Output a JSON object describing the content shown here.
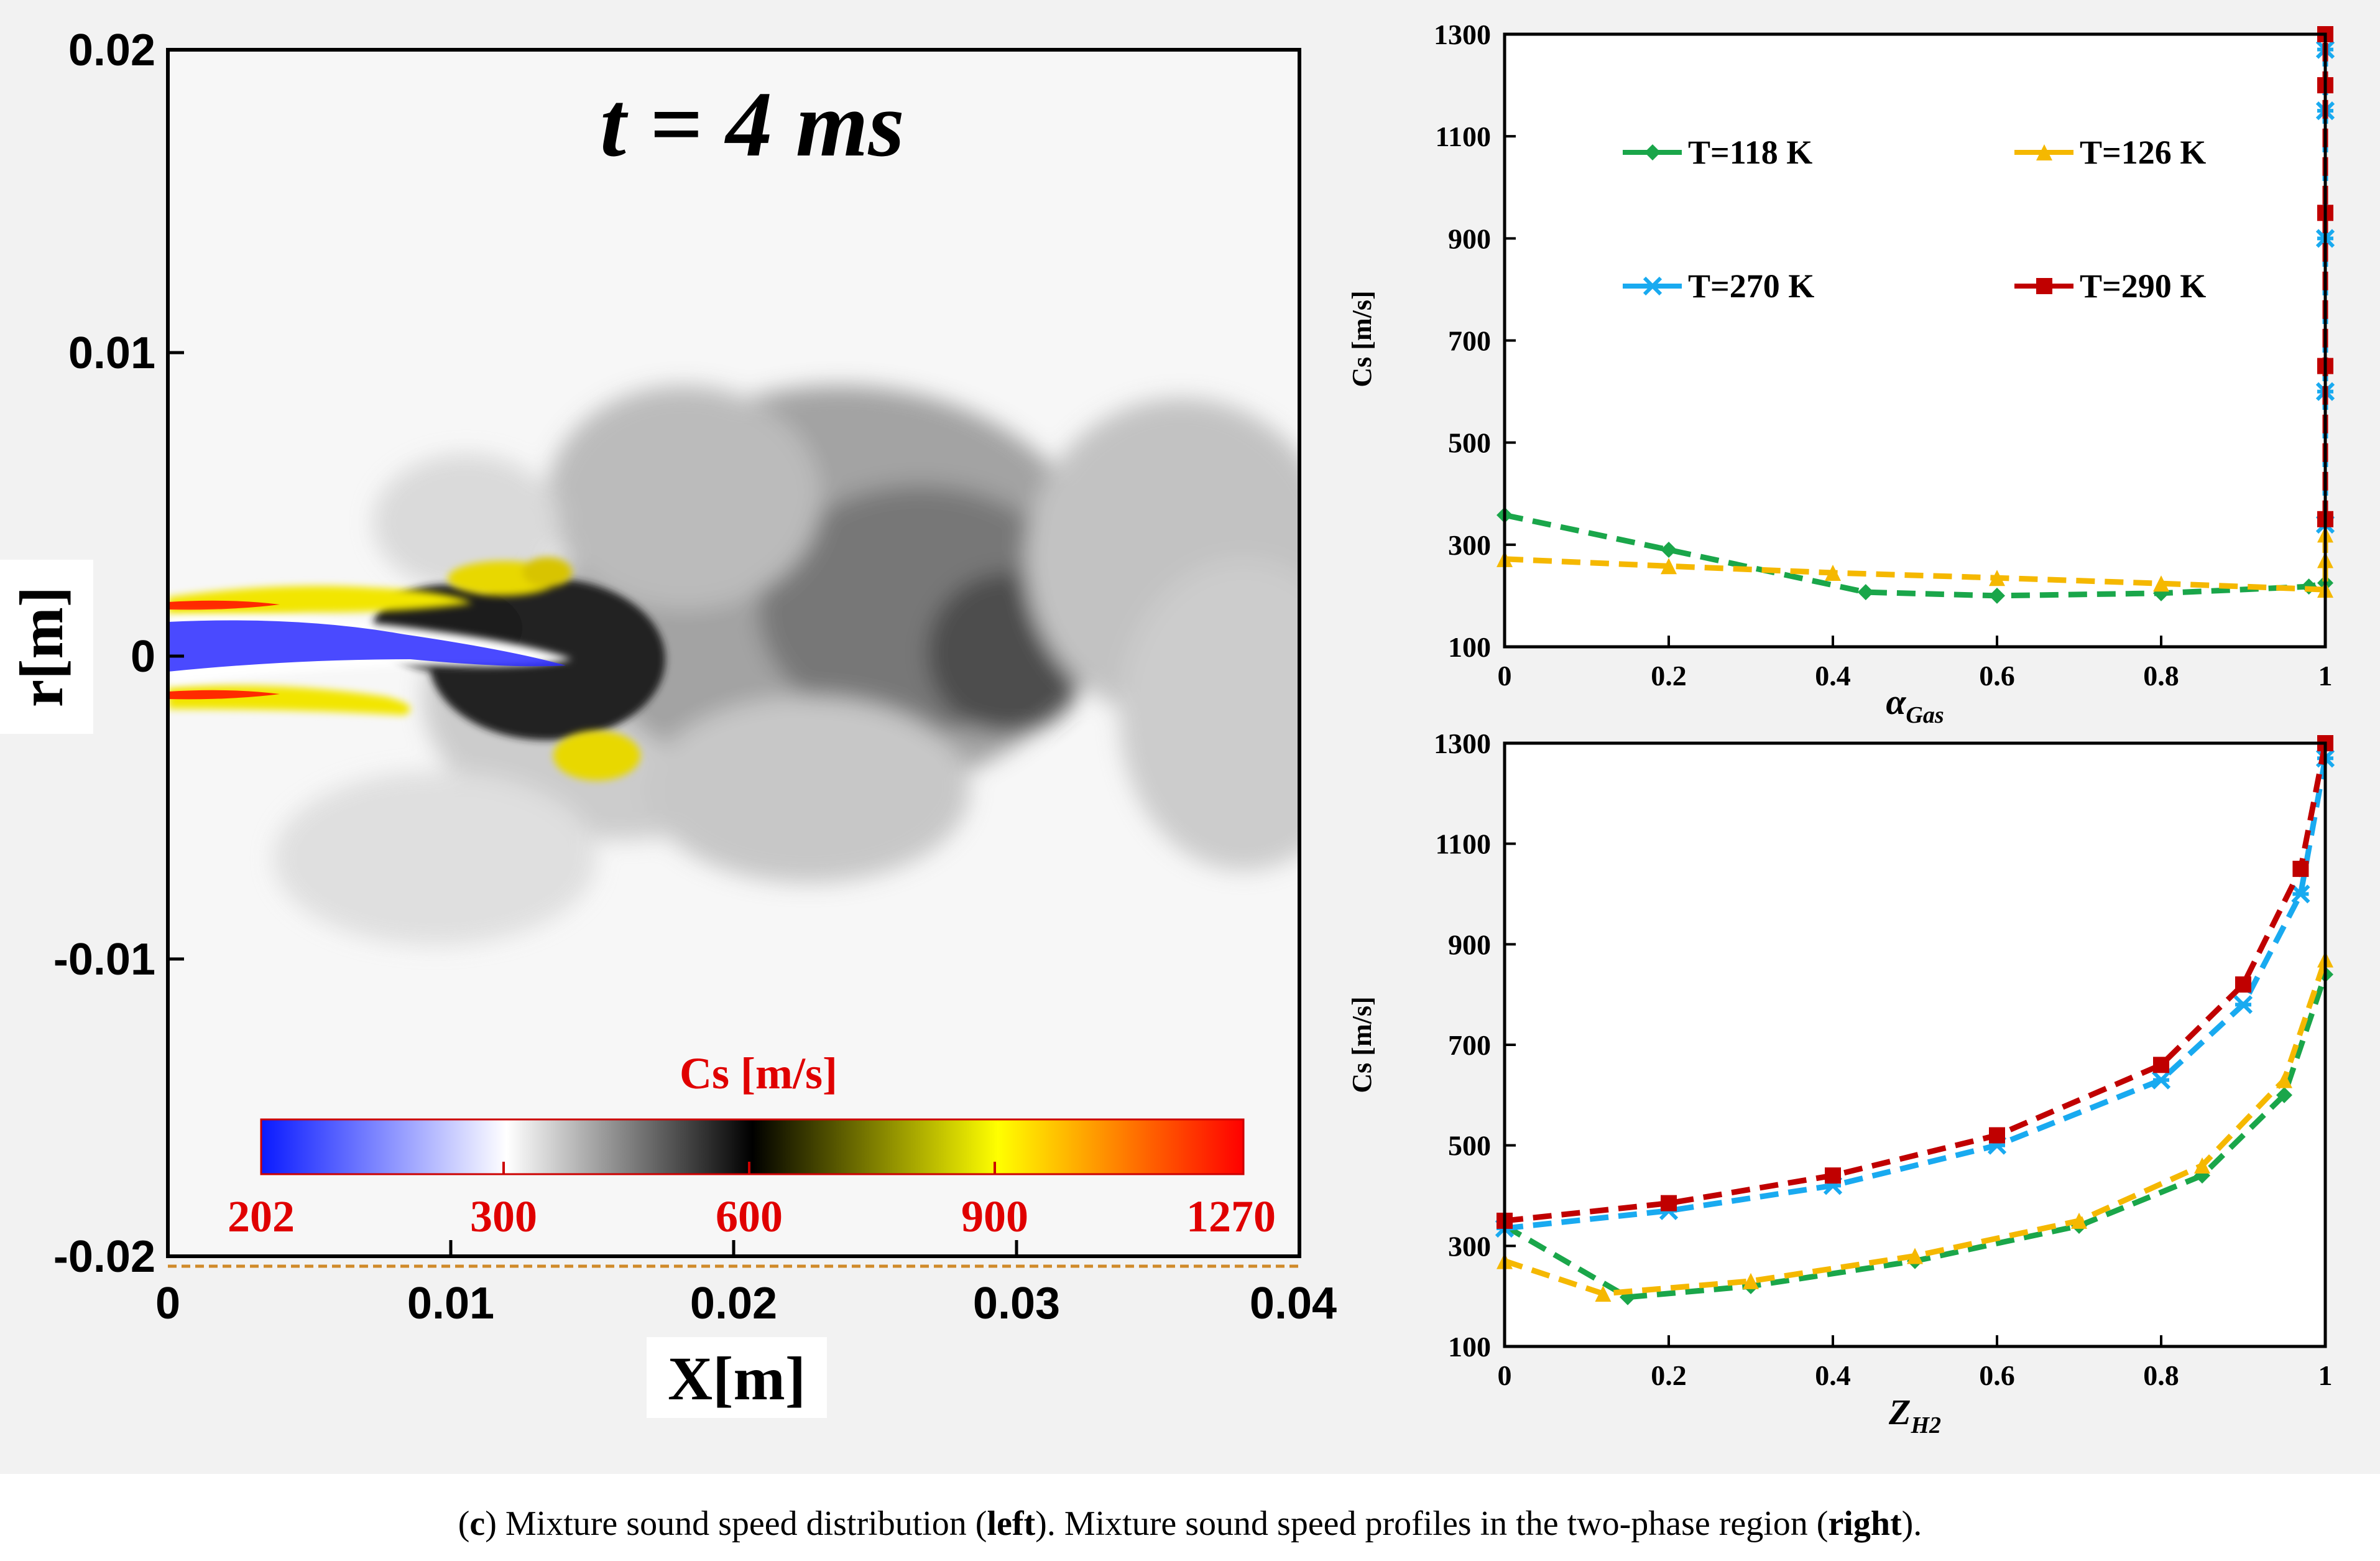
{
  "colors": {
    "panel_bg": "#f2f2f2",
    "red_text": "#e00000",
    "series_green": "#1aa64a",
    "series_yellow": "#f5b800",
    "series_blue": "#19aaf0",
    "series_red": "#c00000"
  },
  "caption": {
    "label": "c",
    "open": "(",
    "close": ")",
    "part1": " Mixture sound speed distribution (",
    "left": "left",
    "part2": "). Mixture sound speed profiles in the two-phase region (",
    "right": "right",
    "part3": ")."
  },
  "contour": {
    "time_label": "t = 4 ms",
    "xlabel": "X[m]",
    "ylabel": "r[m]",
    "x_ticks": [
      "0",
      "0.01",
      "0.02",
      "0.03",
      "0.04"
    ],
    "y_ticks": [
      "0.02",
      "0.01",
      "0",
      "-0.01",
      "-0.02"
    ],
    "colorbar": {
      "title": "Cs [m/s]",
      "labels": [
        "202",
        "300",
        "600",
        "900",
        "1270"
      ],
      "gradient_colors": [
        "#0a1aff",
        "#ffffff",
        "#000000",
        "#ffff00",
        "#ff0000"
      ]
    }
  },
  "chart_data": [
    {
      "type": "line",
      "id": "sound-speed-vs-alpha",
      "xlabel": "α_Gas",
      "ylabel": "Cs [m/s]",
      "xlim": [
        0,
        1
      ],
      "ylim": [
        100,
        1300
      ],
      "x_ticks": [
        "0",
        "0.2",
        "0.4",
        "0.6",
        "0.8",
        "1"
      ],
      "y_ticks": [
        "100",
        "300",
        "500",
        "700",
        "900",
        "1100",
        "1300"
      ],
      "legend": [
        "T=118 K",
        "T=126 K",
        "T=270 K",
        "T=290 K"
      ],
      "series": [
        {
          "name": "T=118 K",
          "color": "#1aa64a",
          "marker": "diamond",
          "x": [
            0,
            0.2,
            0.44,
            0.6,
            0.8,
            0.98,
            1.0
          ],
          "y": [
            358,
            290,
            207,
            200,
            205,
            218,
            225
          ]
        },
        {
          "name": "T=126 K",
          "color": "#f5b800",
          "marker": "triangle",
          "x": [
            0,
            0.2,
            0.4,
            0.6,
            0.8,
            1.0,
            1.0,
            1.0
          ],
          "y": [
            272,
            258,
            245,
            235,
            224,
            212,
            270,
            320
          ]
        },
        {
          "name": "T=270 K",
          "color": "#19aaf0",
          "marker": "star",
          "x": [
            1.0,
            1.0,
            1.0,
            1.0,
            1.0
          ],
          "y": [
            340,
            600,
            900,
            1150,
            1270
          ]
        },
        {
          "name": "T=290 K",
          "color": "#c00000",
          "marker": "square",
          "x": [
            1.0,
            1.0,
            1.0,
            1.0,
            1.0
          ],
          "y": [
            350,
            650,
            950,
            1200,
            1300
          ]
        }
      ]
    },
    {
      "type": "line",
      "id": "sound-speed-vs-z",
      "xlabel": "Z_H2",
      "ylabel": "Cs [m/s]",
      "xlim": [
        0,
        1
      ],
      "ylim": [
        100,
        1300
      ],
      "x_ticks": [
        "0",
        "0.2",
        "0.4",
        "0.6",
        "0.8",
        "1"
      ],
      "y_ticks": [
        "100",
        "300",
        "500",
        "700",
        "900",
        "1100",
        "1300"
      ],
      "series": [
        {
          "name": "T=118 K",
          "color": "#1aa64a",
          "marker": "diamond",
          "x": [
            0,
            0.15,
            0.3,
            0.5,
            0.7,
            0.85,
            0.95,
            1.0
          ],
          "y": [
            340,
            198,
            220,
            270,
            340,
            440,
            600,
            840
          ]
        },
        {
          "name": "T=126 K",
          "color": "#f5b800",
          "marker": "triangle",
          "x": [
            0,
            0.12,
            0.3,
            0.5,
            0.7,
            0.85,
            0.95,
            1.0
          ],
          "y": [
            270,
            205,
            230,
            280,
            350,
            460,
            630,
            870
          ]
        },
        {
          "name": "T=270 K",
          "color": "#19aaf0",
          "marker": "star",
          "x": [
            0,
            0.2,
            0.4,
            0.6,
            0.8,
            0.9,
            0.97,
            1.0
          ],
          "y": [
            335,
            370,
            420,
            500,
            630,
            780,
            1000,
            1270
          ]
        },
        {
          "name": "T=290 K",
          "color": "#c00000",
          "marker": "square",
          "x": [
            0,
            0.2,
            0.4,
            0.6,
            0.8,
            0.9,
            0.97,
            1.0
          ],
          "y": [
            350,
            385,
            440,
            520,
            660,
            820,
            1050,
            1300
          ]
        }
      ]
    }
  ]
}
